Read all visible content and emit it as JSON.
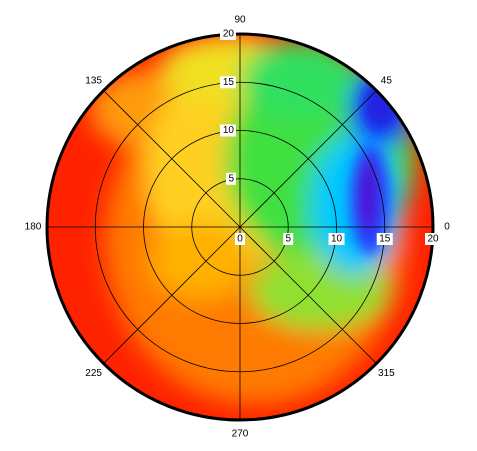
{
  "chart_data": {
    "type": "polar-heatmap",
    "theta_ticks": [
      0,
      45,
      90,
      135,
      180,
      225,
      270,
      315
    ],
    "rlim": [
      0,
      20
    ],
    "rticks": [
      0,
      5,
      10,
      15,
      20
    ]
  }
}
